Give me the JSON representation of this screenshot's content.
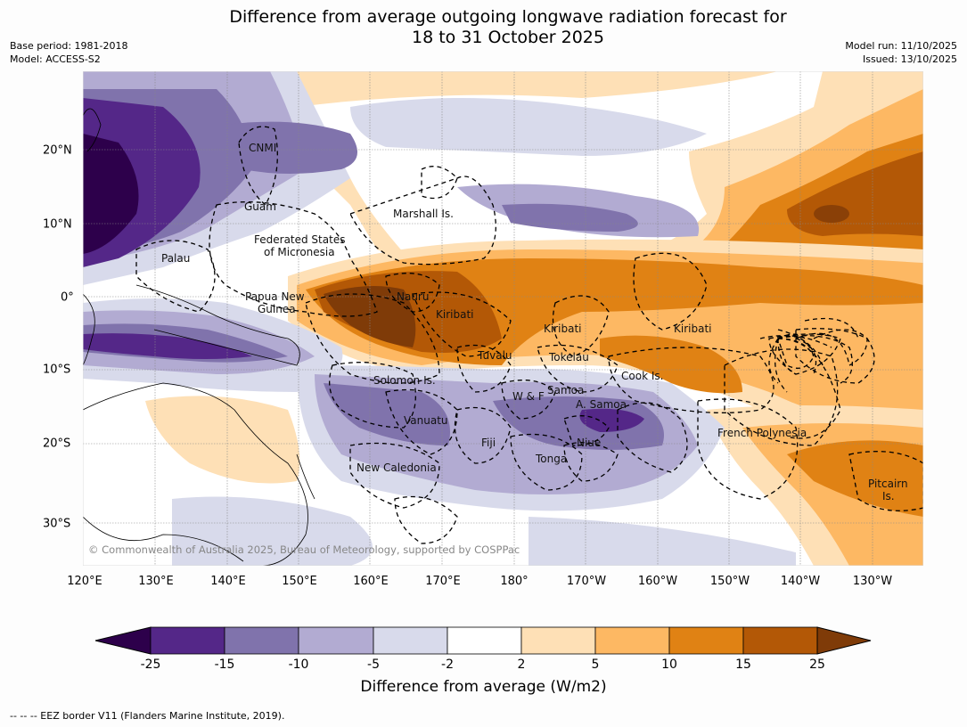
{
  "header": {
    "title_line1": "Difference from average outgoing longwave radiation forecast for",
    "title_line2": "18 to 31 October 2025",
    "base_period": "Base period: 1981-2018",
    "model": "Model: ACCESS-S2",
    "model_run": "Model run: 11/10/2025",
    "issued": "Issued: 13/10/2025"
  },
  "map": {
    "copyright": "© Commonwealth of Australia 2025, Bureau of Meteorology, supported by COSPPac",
    "longitude_labels": [
      "120°E",
      "130°E",
      "140°E",
      "150°E",
      "160°E",
      "170°E",
      "180°",
      "170°W",
      "160°W",
      "150°W",
      "140°W",
      "130°W"
    ],
    "latitude_labels": [
      "20°N",
      "10°N",
      "0°",
      "10°S",
      "20°S",
      "30°S"
    ],
    "region_labels": {
      "cnmi": "CNMI",
      "guam": "Guam",
      "marshall": "Marshall Is.",
      "fsm1": "Federated States",
      "fsm2": "of Micronesia",
      "palau": "Palau",
      "png1": "Papua New",
      "png2": "Guinea",
      "nauru": "Nauru",
      "kiribati_w": "Kiribati",
      "kiribati_c": "Kiribati",
      "kiribati_e": "Kiribati",
      "tuvalu": "Tuvalu",
      "tokelau": "Tokelau",
      "cook": "Cook Is.",
      "solomon": "Solomon Is.",
      "samoa": "Samoa",
      "wf": "W & F",
      "asamoa": "A. Samoa",
      "vanuatu": "Vanuatu",
      "fiji": "Fiji",
      "niue": "Niue",
      "tonga": "Tonga",
      "newcal": "New Caledonia",
      "frenchpoly": "French Polynesia",
      "pitcairn1": "Pitcairn",
      "pitcairn2": "Is."
    }
  },
  "colorbar": {
    "title": "Difference from average (W/m2)",
    "tick_labels": [
      "-25",
      "-15",
      "-10",
      "-5",
      "-2",
      "2",
      "5",
      "10",
      "15",
      "25"
    ],
    "colors": [
      "#2d004b",
      "#542788",
      "#8073ac",
      "#b2abd2",
      "#d8daeb",
      "#ffffff",
      "#fee0b6",
      "#fdb863",
      "#e08214",
      "#b35806",
      "#7f3b08"
    ]
  },
  "footer": {
    "eez_note": "--  --  -- EEZ border V11 (Flanders Marine Institute, 2019)."
  }
}
